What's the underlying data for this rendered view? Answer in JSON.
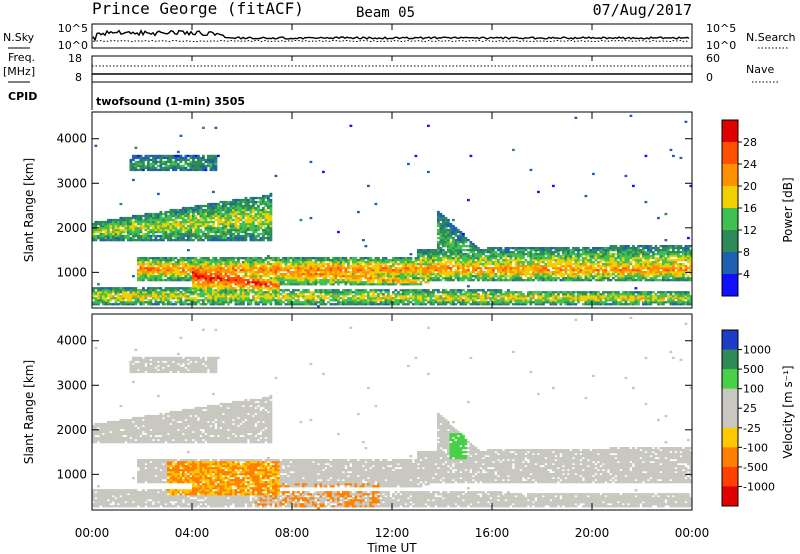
{
  "header": {
    "station": "Prince George (fitACF)",
    "beam": "Beam 05",
    "date": "07/Aug/2017"
  },
  "noise_panel": {
    "left_label": "N.Sky",
    "right_label": "N.Search",
    "left_ticks": [
      "10^5",
      "10^0"
    ],
    "right_ticks": [
      "10^5",
      "10^0"
    ]
  },
  "freq_panel": {
    "left_label_1": "Freq.",
    "left_label_2": "[MHz]",
    "right_label": "Nave",
    "left_ticks": [
      "18",
      "8"
    ],
    "right_ticks": [
      "60",
      "0"
    ],
    "cpid_label": "CPID",
    "cpid_text": "twofsound (1-min) 3505"
  },
  "time_axis": {
    "label": "Time UT",
    "ticks": [
      "00:00",
      "04:00",
      "08:00",
      "12:00",
      "16:00",
      "20:00",
      "00:00"
    ]
  },
  "chart_data": [
    {
      "type": "heatmap",
      "name": "power",
      "ylabel": "Slant Range [km]",
      "yticks": [
        "1000",
        "2000",
        "3000",
        "4000"
      ],
      "ylim": [
        200,
        4600
      ],
      "xlim_hours": [
        0,
        24
      ],
      "colorbar": {
        "label": "Power [dB]",
        "ticks": [
          "4",
          "8",
          "12",
          "16",
          "20",
          "24",
          "28"
        ],
        "colors": [
          "#1010ff",
          "#2060b0",
          "#2e8b57",
          "#40c050",
          "#f0d000",
          "#ff9000",
          "#ff5000",
          "#e00000"
        ]
      }
    },
    {
      "type": "heatmap",
      "name": "velocity",
      "ylabel": "Slant Range [km]",
      "yticks": [
        "1000",
        "2000",
        "3000",
        "4000"
      ],
      "ylim": [
        200,
        4600
      ],
      "xlim_hours": [
        0,
        24
      ],
      "colorbar": {
        "label": "Velocity [m s⁻¹]",
        "ticks": [
          "1000",
          "500",
          "100",
          "25",
          "-25",
          "-100",
          "-500",
          "-1000"
        ],
        "colors": [
          "#1e3cc8",
          "#2e8b57",
          "#48d048",
          "#c8c8c0",
          "#c8c8c0",
          "#ffc800",
          "#ff8000",
          "#ff4000",
          "#e00000"
        ]
      }
    }
  ]
}
